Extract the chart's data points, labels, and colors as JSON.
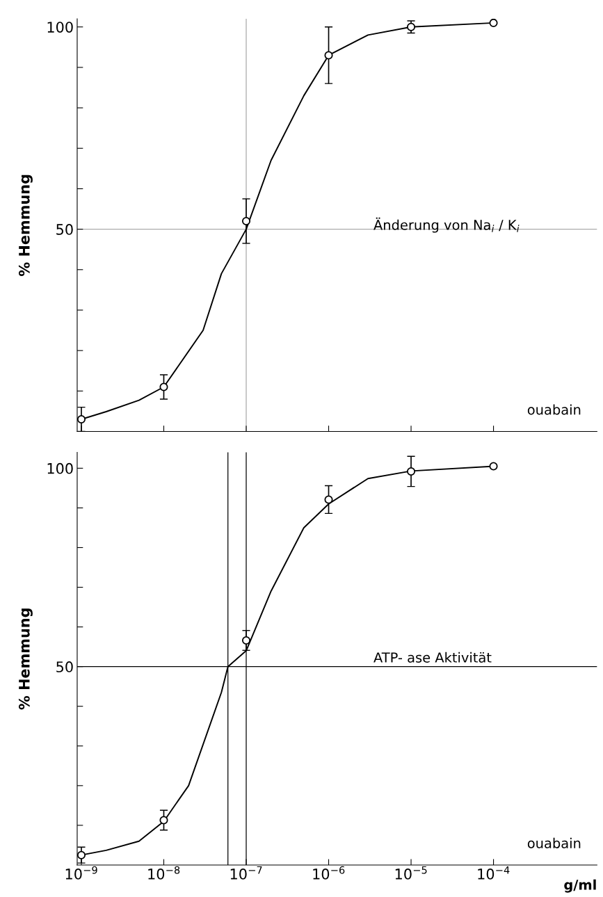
{
  "chart_data": [
    {
      "type": "scatter",
      "ylabel": "% Hemmung",
      "log": "x",
      "grid": false,
      "tick_labels": "y",
      "marker": "circle",
      "xlim": [
        8.9e-10,
        0.0018
      ],
      "ylim": [
        0,
        102
      ],
      "xticks": [
        {
          "value": 1e-09,
          "label": null
        },
        {
          "value": 1e-08,
          "label": null
        },
        {
          "value": 1e-07,
          "label": null
        },
        {
          "value": 1e-06,
          "label": null
        },
        {
          "value": 1e-05,
          "label": null
        },
        {
          "value": 0.0001,
          "label": null
        }
      ],
      "yticks": [
        {
          "value": 10,
          "label": null
        },
        {
          "value": 20,
          "label": null
        },
        {
          "value": 30,
          "label": null
        },
        {
          "value": 40,
          "label": null
        },
        50,
        {
          "value": 60,
          "label": null
        },
        {
          "value": 70,
          "label": null
        },
        {
          "value": 80,
          "label": null
        },
        {
          "value": 90,
          "label": null
        },
        100
      ],
      "series": [
        {
          "color": "#000000",
          "x": [
            1e-09,
            1e-08,
            1e-07,
            1e-06,
            1e-05,
            0.0001
          ],
          "values": [
            3,
            11,
            52,
            93,
            100,
            101
          ],
          "errors": [
            3,
            3,
            5.5,
            7,
            1.5,
            null
          ]
        },
        {
          "type": "line",
          "color": "#000000",
          "marker": "none",
          "line_style": "solid",
          "x": [
            1e-09,
            2e-09,
            5e-09,
            1e-08,
            3e-08,
            5e-08,
            1e-07,
            2e-07,
            5e-07,
            1e-06,
            3e-06,
            1e-05,
            0.0001
          ],
          "values": [
            3,
            4.9,
            7.7,
            11,
            25,
            39,
            50,
            67,
            83,
            93,
            98,
            100,
            101
          ]
        }
      ],
      "ref_lines": [
        {
          "axis": "y",
          "value": 50,
          "color": "#aaaaaa"
        },
        {
          "axis": "x",
          "value": 1e-07,
          "color": "#aaaaaa"
        }
      ],
      "annotations": [
        "Änderung von Na$_{i}$ / K$_{i}$",
        "ouabain"
      ]
    },
    {
      "type": "scatter",
      "ylabel": "% Hemmung",
      "xlabel": "g/ml",
      "log": "x",
      "grid": false,
      "marker": "circle",
      "xlim": [
        8.9e-10,
        0.0018
      ],
      "ylim": [
        0,
        104
      ],
      "xticks": [
        {
          "value": 1e-09,
          "label": "10$^{−9}$"
        },
        {
          "value": 1e-08,
          "label": "10$^{−8}$"
        },
        {
          "value": 1e-07,
          "label": "10$^{−7}$"
        },
        {
          "value": 1e-06,
          "label": "10$^{−6}$"
        },
        {
          "value": 1e-05,
          "label": "10$^{−5}$"
        },
        {
          "value": 0.0001,
          "label": "10$^{−4}$"
        }
      ],
      "yticks": [
        {
          "value": 10,
          "label": null
        },
        {
          "value": 20,
          "label": null
        },
        {
          "value": 30,
          "label": null
        },
        {
          "value": 40,
          "label": null
        },
        50,
        {
          "value": 60,
          "label": null
        },
        {
          "value": 70,
          "label": null
        },
        {
          "value": 80,
          "label": null
        },
        {
          "value": 90,
          "label": null
        },
        100
      ],
      "series": [
        {
          "color": "#000000",
          "x": [
            1e-09,
            1e-08,
            1e-07,
            1e-06,
            1e-05,
            0.0001
          ],
          "values": [
            2.5,
            11.3,
            56.6,
            92.1,
            99.2,
            100.5
          ],
          "errors": [
            2,
            2.5,
            2.5,
            3.5,
            3.8,
            null
          ]
        },
        {
          "type": "line",
          "color": "#000000",
          "marker": "none",
          "line_style": "solid",
          "x": [
            1e-09,
            2e-09,
            5e-09,
            1e-08,
            2e-08,
            5e-08,
            6e-08,
            1e-07,
            2e-07,
            5e-07,
            1e-06,
            3e-06,
            1e-05,
            0.0001
          ],
          "values": [
            2.5,
            3.7,
            6,
            11,
            20,
            43.5,
            50,
            54,
            69,
            85,
            91,
            97.4,
            99.3,
            100.5
          ]
        }
      ],
      "ref_lines": [
        {
          "axis": "y",
          "value": 50,
          "color": "#000000"
        },
        {
          "axis": "x",
          "value": 6e-08,
          "color": "#000000"
        },
        {
          "axis": "x",
          "value": 1e-07,
          "color": "#000000"
        }
      ],
      "annotations": [
        "ATP- ase Aktivität",
        "ouabain"
      ]
    }
  ]
}
